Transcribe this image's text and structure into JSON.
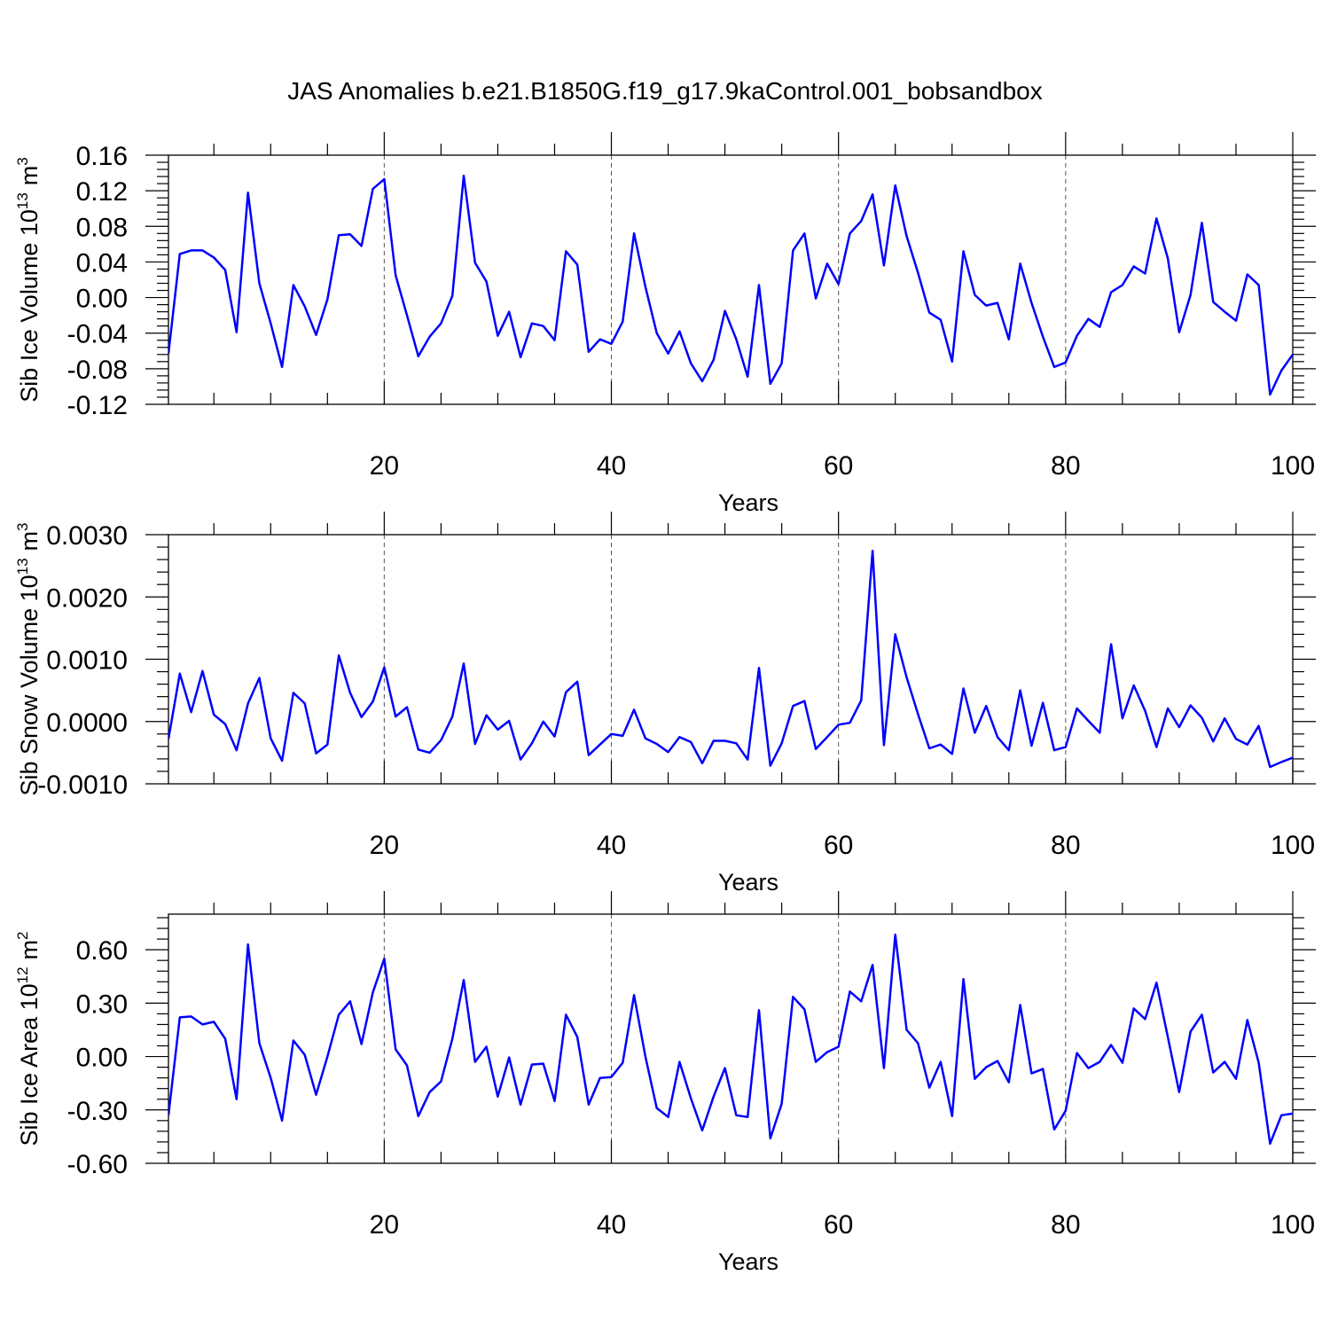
{
  "title": "JAS Anomalies b.e21.B1850G.f19_g17.9kaControl.001_bobsandbox",
  "colors": {
    "series": "#0000ff"
  },
  "chart_data": [
    {
      "type": "line",
      "ylabel": "Sib Ice Volume 10",
      "ylabel_sup": "13",
      "ylabel_unit": "m",
      "ylabel_unit_sup": "3",
      "xlabel": "Years",
      "xlim": [
        1,
        100
      ],
      "ylim": [
        -0.12,
        0.16
      ],
      "xticks": [
        20,
        40,
        60,
        80,
        100
      ],
      "yticks": [
        -0.12,
        -0.08,
        -0.04,
        0.0,
        0.04,
        0.08,
        0.12,
        0.16
      ],
      "ytick_labels": [
        "-0.12",
        "-0.08",
        "-0.04",
        "0.00",
        "0.04",
        "0.08",
        "0.12",
        "0.16"
      ],
      "grid_x": [
        20,
        40,
        60,
        80
      ],
      "values": [
        -0.063,
        0.049,
        0.053,
        0.053,
        0.045,
        0.031,
        -0.039,
        0.118,
        0.016,
        -0.029,
        -0.078,
        0.014,
        -0.01,
        -0.042,
        -0.002,
        0.07,
        0.071,
        0.058,
        0.122,
        0.133,
        0.025,
        -0.02,
        -0.066,
        -0.044,
        -0.029,
        0.002,
        0.137,
        0.039,
        0.018,
        -0.043,
        -0.016,
        -0.067,
        -0.029,
        -0.032,
        -0.048,
        0.052,
        0.037,
        -0.061,
        -0.047,
        -0.052,
        -0.027,
        0.072,
        0.012,
        -0.04,
        -0.063,
        -0.038,
        -0.074,
        -0.094,
        -0.07,
        -0.015,
        -0.047,
        -0.089,
        0.014,
        -0.097,
        -0.074,
        0.053,
        0.072,
        -0.001,
        0.038,
        0.015,
        0.072,
        0.086,
        0.116,
        0.036,
        0.126,
        0.069,
        0.028,
        -0.017,
        -0.025,
        -0.072,
        0.052,
        0.003,
        -0.009,
        -0.006,
        -0.047,
        0.038,
        -0.006,
        -0.044,
        -0.078,
        -0.073,
        -0.043,
        -0.024,
        -0.033,
        0.006,
        0.014,
        0.035,
        0.027,
        0.089,
        0.044,
        -0.039,
        0.003,
        0.084,
        -0.005,
        -0.016,
        -0.026,
        0.026,
        0.014,
        -0.109,
        -0.082,
        -0.064
      ]
    },
    {
      "type": "line",
      "ylabel": "Sib Snow Volume 10",
      "ylabel_sup": "13",
      "ylabel_unit": "m",
      "ylabel_unit_sup": "3",
      "xlabel": "Years",
      "xlim": [
        1,
        100
      ],
      "ylim": [
        -0.001,
        0.003
      ],
      "xticks": [
        20,
        40,
        60,
        80,
        100
      ],
      "yticks": [
        -0.001,
        0.0,
        0.001,
        0.002,
        0.003
      ],
      "ytick_labels": [
        "-0.0010",
        "0.0000",
        "0.0010",
        "0.0020",
        "0.0030"
      ],
      "grid_x": [
        20,
        40,
        60,
        80
      ],
      "values": [
        -0.00028,
        0.00077,
        0.00015,
        0.00081,
        0.00011,
        -4e-05,
        -0.00046,
        0.00029,
        0.0007,
        -0.00027,
        -0.00063,
        0.00046,
        0.00029,
        -0.00051,
        -0.00037,
        0.00106,
        0.00046,
        7e-05,
        0.00032,
        0.00087,
        8e-05,
        0.00023,
        -0.00045,
        -0.0005,
        -0.0003,
        8e-05,
        0.00093,
        -0.00036,
        0.0001,
        -0.00013,
        1e-05,
        -0.00061,
        -0.00035,
        0.0,
        -0.00024,
        0.00047,
        0.00064,
        -0.00054,
        -0.00037,
        -0.0002,
        -0.00023,
        0.00019,
        -0.00027,
        -0.00036,
        -0.00049,
        -0.00025,
        -0.00033,
        -0.00067,
        -0.00031,
        -0.00031,
        -0.00035,
        -0.00061,
        0.00086,
        -0.00071,
        -0.00035,
        0.00025,
        0.00033,
        -0.00044,
        -0.00025,
        -5e-05,
        -2e-05,
        0.00034,
        0.00274,
        -0.00038,
        0.0014,
        0.00071,
        0.00012,
        -0.00043,
        -0.00037,
        -0.00052,
        0.00053,
        -0.00018,
        0.00025,
        -0.00025,
        -0.00046,
        0.0005,
        -0.00039,
        0.0003,
        -0.00046,
        -0.00041,
        0.00021,
        1e-05,
        -0.00018,
        0.00124,
        5e-05,
        0.00058,
        0.00017,
        -0.00041,
        0.00021,
        -9e-05,
        0.00026,
        6e-05,
        -0.00032,
        5e-05,
        -0.00028,
        -0.00037,
        -7e-05,
        -0.00073,
        -0.00065,
        -0.00058
      ]
    },
    {
      "type": "line",
      "ylabel": "Sib Ice Area 10",
      "ylabel_sup": "12",
      "ylabel_unit": "m",
      "ylabel_unit_sup": "2",
      "xlabel": "Years",
      "xlim": [
        1,
        100
      ],
      "ylim": [
        -0.6,
        0.8
      ],
      "xticks": [
        20,
        40,
        60,
        80,
        100
      ],
      "yticks": [
        -0.6,
        -0.3,
        0.0,
        0.3,
        0.6
      ],
      "ytick_labels": [
        "-0.60",
        "-0.30",
        "0.00",
        "0.30",
        "0.60"
      ],
      "grid_x": [
        20,
        40,
        60,
        80
      ],
      "values": [
        -0.33,
        0.22,
        0.225,
        0.18,
        0.195,
        0.1,
        -0.24,
        0.63,
        0.075,
        -0.12,
        -0.36,
        0.09,
        0.01,
        -0.215,
        0.0,
        0.235,
        0.31,
        0.07,
        0.36,
        0.55,
        0.04,
        -0.05,
        -0.335,
        -0.2,
        -0.14,
        0.1,
        0.43,
        -0.03,
        0.055,
        -0.225,
        -0.005,
        -0.27,
        -0.045,
        -0.04,
        -0.25,
        0.235,
        0.11,
        -0.27,
        -0.12,
        -0.115,
        -0.035,
        0.345,
        0.0,
        -0.29,
        -0.34,
        -0.03,
        -0.235,
        -0.415,
        -0.225,
        -0.065,
        -0.33,
        -0.34,
        0.26,
        -0.46,
        -0.265,
        0.335,
        0.265,
        -0.03,
        0.025,
        0.055,
        0.365,
        0.31,
        0.515,
        -0.065,
        0.685,
        0.15,
        0.075,
        -0.175,
        -0.03,
        -0.335,
        0.435,
        -0.125,
        -0.06,
        -0.025,
        -0.145,
        0.29,
        -0.095,
        -0.07,
        -0.41,
        -0.305,
        0.02,
        -0.065,
        -0.03,
        0.065,
        -0.035,
        0.27,
        0.21,
        0.415,
        0.11,
        -0.2,
        0.14,
        0.235,
        -0.09,
        -0.03,
        -0.125,
        0.205,
        -0.035,
        -0.49,
        -0.33,
        -0.32
      ]
    }
  ]
}
